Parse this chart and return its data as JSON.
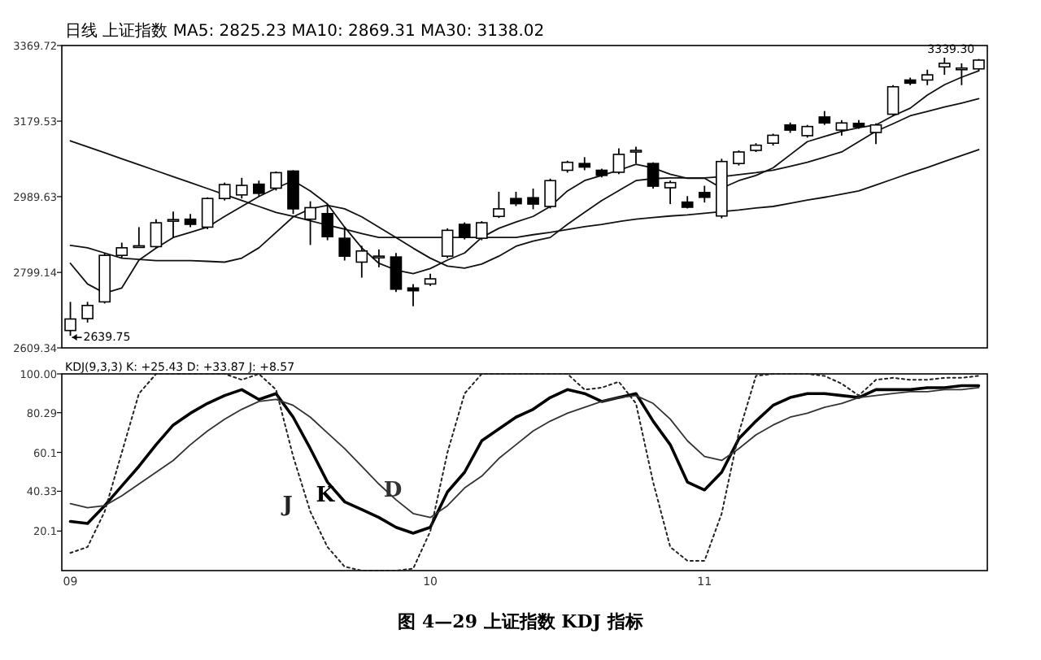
{
  "chart_data": [
    {
      "type": "candlestick",
      "title": "日线 上证指数 MA5: 2825.23 MA10: 2869.31 MA30: 3138.02",
      "color": "#000000",
      "categories": [
        null,
        null,
        null,
        null,
        null,
        null,
        null,
        null,
        null,
        null,
        null,
        null,
        null,
        null,
        null,
        null,
        null,
        null,
        null,
        null,
        null,
        null,
        null,
        null,
        null,
        null,
        null,
        null,
        null,
        null,
        null,
        null,
        null,
        null,
        null,
        null,
        null,
        null,
        null,
        null,
        null,
        null,
        null,
        null,
        null,
        null,
        null,
        null,
        null,
        null,
        null,
        null,
        null,
        null
      ],
      "ohlc": [
        [
          2653,
          2725,
          2639.75,
          2682
        ],
        [
          2683,
          2725,
          2673,
          2716
        ],
        [
          2725,
          2848,
          2721,
          2842
        ],
        [
          2842,
          2874,
          2835,
          2861
        ],
        [
          2864,
          2913,
          2861,
          2866
        ],
        [
          2864,
          2933,
          2861,
          2924
        ],
        [
          2930,
          2952,
          2887,
          2932
        ],
        [
          2933,
          2946,
          2913,
          2920
        ],
        [
          2913,
          2988,
          2908,
          2985
        ],
        [
          2985,
          3025,
          2980,
          3020
        ],
        [
          2994,
          3037,
          2985,
          3018
        ],
        [
          3021,
          3030,
          2990,
          2998
        ],
        [
          3011,
          3053,
          3005,
          3050
        ],
        [
          3054,
          3056,
          2946,
          2959
        ],
        [
          2933,
          2978,
          2868,
          2962
        ],
        [
          2947,
          2971,
          2880,
          2889
        ],
        [
          2885,
          2913,
          2829,
          2840
        ],
        [
          2825,
          2866,
          2786,
          2853
        ],
        [
          2838,
          2857,
          2812,
          2840
        ],
        [
          2838,
          2848,
          2750,
          2757
        ],
        [
          2760,
          2770,
          2714,
          2753
        ],
        [
          2770,
          2796,
          2765,
          2783
        ],
        [
          2840,
          2910,
          2835,
          2905
        ],
        [
          2920,
          2925,
          2882,
          2887
        ],
        [
          2885,
          2928,
          2880,
          2924
        ],
        [
          2940,
          3002,
          2936,
          2959
        ],
        [
          2985,
          3002,
          2966,
          2972
        ],
        [
          2987,
          3010,
          2958,
          2971
        ],
        [
          2965,
          3035,
          2960,
          3030
        ],
        [
          3056,
          3080,
          3050,
          3076
        ],
        [
          3073,
          3089,
          3056,
          3064
        ],
        [
          3056,
          3060,
          3038,
          3043
        ],
        [
          3051,
          3111,
          3046,
          3096
        ],
        [
          3102,
          3115,
          3073,
          3106
        ],
        [
          3073,
          3076,
          3010,
          3016
        ],
        [
          3012,
          3030,
          2971,
          3025
        ],
        [
          2976,
          2991,
          2960,
          2963
        ],
        [
          3000,
          3017,
          2975,
          2988
        ],
        [
          2941,
          3085,
          2935,
          3078
        ],
        [
          3073,
          3106,
          3068,
          3102
        ],
        [
          3106,
          3124,
          3102,
          3119
        ],
        [
          3124,
          3148,
          3118,
          3144
        ],
        [
          3170,
          3176,
          3150,
          3157
        ],
        [
          3143,
          3170,
          3138,
          3166
        ],
        [
          3190,
          3205,
          3170,
          3175
        ],
        [
          3157,
          3182,
          3143,
          3175
        ],
        [
          3174,
          3182,
          3160,
          3165
        ],
        [
          3151,
          3174,
          3122,
          3170
        ],
        [
          3197,
          3270,
          3192,
          3266
        ],
        [
          3283,
          3289,
          3270,
          3275
        ],
        [
          3283,
          3309,
          3270,
          3296
        ],
        [
          3316,
          3339.3,
          3296,
          3325
        ],
        [
          3311,
          3325,
          3270,
          3313
        ],
        [
          3311,
          3336,
          3305,
          3333
        ]
      ],
      "series": [
        {
          "type": "line",
          "color": "#111111",
          "values": [
            2822,
            2770,
            2747,
            2760,
            2830,
            2860,
            2887,
            2900,
            2913,
            2940,
            2965,
            2990,
            3011,
            3030,
            3004,
            2971,
            2913,
            2861,
            2822,
            2805,
            2796,
            2809,
            2830,
            2848,
            2887,
            2910,
            2926,
            2940,
            2965,
            3004,
            3030,
            3043,
            3056,
            3071,
            3062,
            3046,
            3036,
            3036,
            3011,
            3030,
            3043,
            3062,
            3095,
            3128,
            3141,
            3154,
            3163,
            3170,
            3193,
            3212,
            3245,
            3271,
            3290,
            3306
          ]
        },
        {
          "type": "line",
          "color": "#111111",
          "values": [
            2867,
            2861,
            2848,
            2835,
            2832,
            2829,
            2829,
            2829,
            2827,
            2825,
            2835,
            2861,
            2900,
            2939,
            2959,
            2968,
            2959,
            2939,
            2913,
            2887,
            2860,
            2835,
            2815,
            2810,
            2820,
            2840,
            2865,
            2878,
            2887,
            2920,
            2950,
            2980,
            3005,
            3030,
            3035,
            3037,
            3037,
            3037,
            3040,
            3045,
            3050,
            3056,
            3066,
            3076,
            3089,
            3102,
            3128,
            3154,
            3173,
            3193,
            3204,
            3215,
            3225,
            3236
          ]
        },
        {
          "type": "line",
          "color": "#111111",
          "values": [
            3130,
            3115,
            3100,
            3085,
            3070,
            3055,
            3040,
            3025,
            3010,
            2995,
            2980,
            2965,
            2950,
            2940,
            2929,
            2918,
            2908,
            2897,
            2887,
            2887,
            2887,
            2887,
            2887,
            2887,
            2887,
            2887,
            2887,
            2894,
            2900,
            2907,
            2914,
            2920,
            2927,
            2933,
            2937,
            2941,
            2944,
            2948,
            2952,
            2956,
            2961,
            2965,
            2973,
            2981,
            2988,
            2996,
            3004,
            3019,
            3034,
            3049,
            3063,
            3078,
            3093,
            3108
          ]
        }
      ],
      "ylim": [
        2609.34,
        3369.72
      ],
      "yticks": [
        2609.34,
        2799.14,
        2989.63,
        3179.53,
        3369.72
      ],
      "tick_labels": "y",
      "annotations": [
        "3339.30",
        "2639.75"
      ]
    },
    {
      "type": "line",
      "title": "KDJ(9,3,3) K: +25.43 D: +33.87 J: +8.57",
      "categories": [
        "09",
        null,
        null,
        null,
        null,
        null,
        null,
        null,
        null,
        null,
        null,
        null,
        null,
        null,
        null,
        null,
        null,
        null,
        null,
        null,
        null,
        "10",
        null,
        null,
        null,
        null,
        null,
        null,
        null,
        null,
        null,
        null,
        null,
        null,
        null,
        null,
        null,
        "11",
        null,
        null,
        null,
        null,
        null,
        null,
        null,
        null,
        null,
        null,
        null,
        null,
        null,
        null,
        null,
        null
      ],
      "series": [
        {
          "name": "K",
          "color": "#000000",
          "line_style": "solid",
          "values": [
            25,
            24,
            33,
            43,
            53,
            64,
            74,
            80,
            85,
            89,
            92,
            87,
            90,
            78,
            62,
            45,
            35,
            31,
            27,
            22,
            19,
            22,
            40,
            50,
            66,
            72,
            78,
            82,
            88,
            92,
            90,
            86,
            88,
            90,
            76,
            64,
            45,
            41,
            50,
            67,
            76,
            84,
            88,
            90,
            90,
            89,
            88,
            92,
            92,
            92,
            93,
            93,
            94,
            94
          ]
        },
        {
          "name": "D",
          "color": "#333333",
          "line_style": "solid",
          "values": [
            34,
            32,
            33,
            38,
            44,
            50,
            56,
            64,
            71,
            77,
            82,
            86,
            87,
            84,
            78,
            70,
            62,
            53,
            44,
            36,
            29,
            27,
            33,
            42,
            48,
            57,
            64,
            71,
            76,
            80,
            83,
            86,
            88,
            89,
            85,
            77,
            66,
            58,
            56,
            62,
            69,
            74,
            78,
            80,
            83,
            85,
            88,
            89,
            90,
            91,
            91,
            92,
            92,
            93
          ]
        },
        {
          "name": "J",
          "color": "#222222",
          "line_style": "dotted",
          "values": [
            9,
            12,
            30,
            60,
            90,
            100,
            100,
            100,
            100,
            100,
            97,
            100,
            92,
            58,
            30,
            12,
            2,
            0,
            0,
            0,
            1,
            20,
            60,
            90,
            100,
            100,
            100,
            100,
            100,
            100,
            92,
            93,
            96,
            85,
            45,
            12,
            5,
            5,
            29,
            70,
            99,
            100,
            100,
            100,
            99,
            95,
            89,
            97,
            98,
            97,
            97,
            98,
            98,
            99
          ]
        }
      ],
      "ylim": [
        0,
        100
      ],
      "yticks": [
        20.1,
        40.33,
        60.1,
        80.29,
        {
          "value": 100,
          "label": "100.00"
        }
      ],
      "annotations": [
        "图 4—29   上证指数 KDJ 指标"
      ]
    }
  ]
}
